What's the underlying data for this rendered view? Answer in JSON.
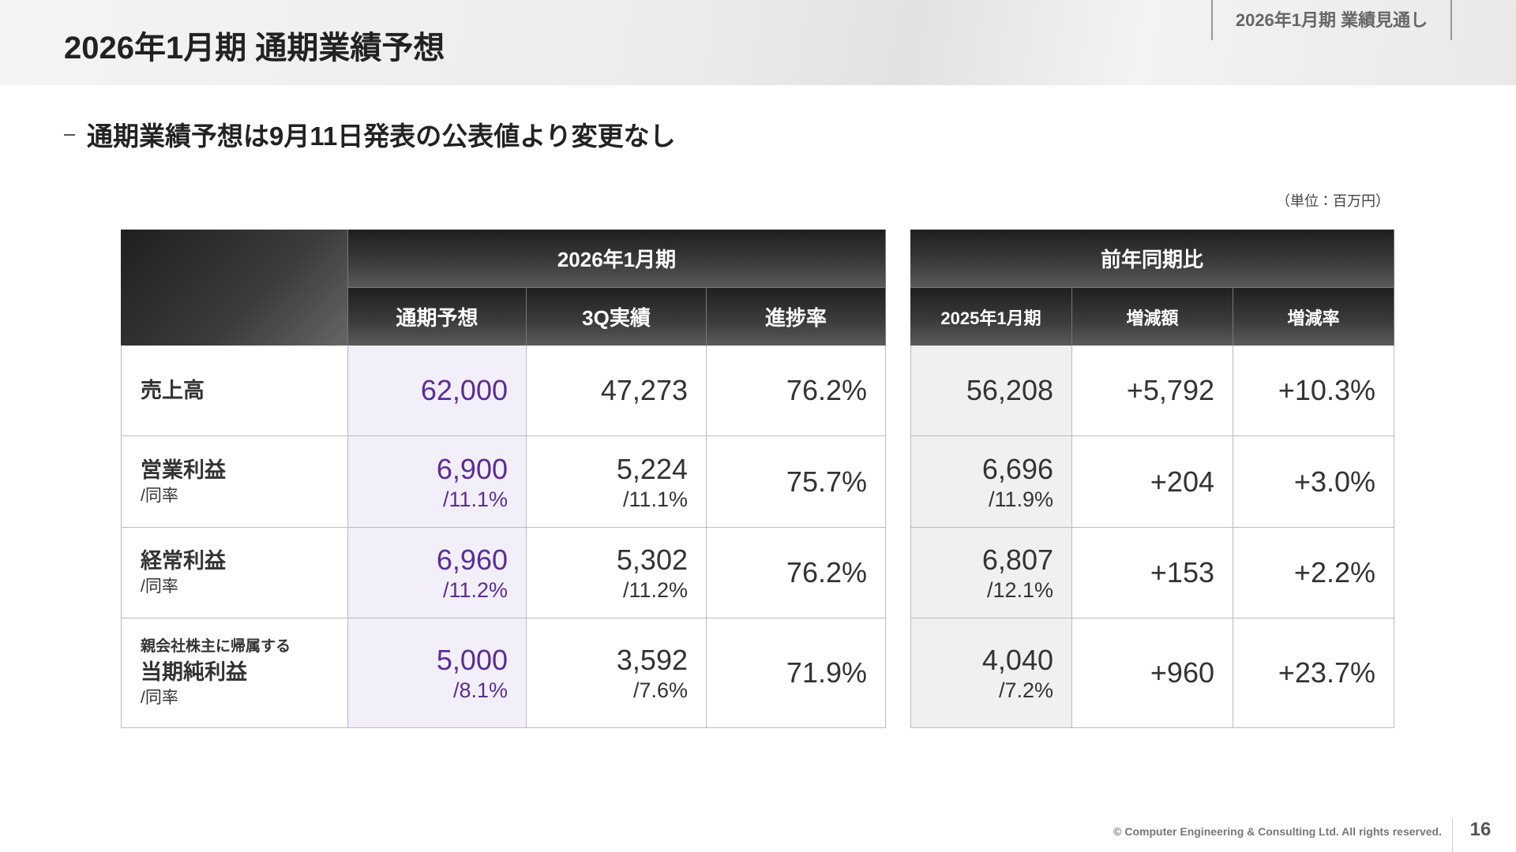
{
  "header": {
    "title": "2026年1月期 通期業績予想",
    "tag": "2026年1月期 業績見通し"
  },
  "subtitle": "通期業績予想は9月11日発表の公表値より変更なし",
  "unit": "（単位：百万円）",
  "table": {
    "group_header": "2026年1月期",
    "column_headers": [
      "通期予想",
      "3Q実績",
      "進捗率"
    ],
    "rows": [
      {
        "label": "売上高",
        "cells": [
          {
            "main": "62,000"
          },
          {
            "main": "47,273"
          },
          {
            "main": "76.2%"
          }
        ]
      },
      {
        "label": "営業利益",
        "sublabel": "/同率",
        "cells": [
          {
            "main": "6,900",
            "sub": "/11.1%"
          },
          {
            "main": "5,224",
            "sub": "/11.1%"
          },
          {
            "main": "75.7%"
          }
        ]
      },
      {
        "label": "経常利益",
        "sublabel": "/同率",
        "cells": [
          {
            "main": "6,960",
            "sub": "/11.2%"
          },
          {
            "main": "5,302",
            "sub": "/11.2%"
          },
          {
            "main": "76.2%"
          }
        ]
      },
      {
        "prelabel": "親会社株主に帰属する",
        "label": "当期純利益",
        "sublabel": "/同率",
        "cells": [
          {
            "main": "5,000",
            "sub": "/8.1%"
          },
          {
            "main": "3,592",
            "sub": "/7.6%"
          },
          {
            "main": "71.9%"
          }
        ]
      }
    ]
  },
  "comparison": {
    "group_header": "前年同期比",
    "column_headers": [
      "2025年1月期",
      "増減額",
      "増減率"
    ],
    "rows": [
      {
        "cells": [
          {
            "main": "56,208"
          },
          {
            "main": "+5,792"
          },
          {
            "main": "+10.3%"
          }
        ]
      },
      {
        "cells": [
          {
            "main": "6,696",
            "sub": "/11.9%"
          },
          {
            "main": "+204"
          },
          {
            "main": "+3.0%"
          }
        ]
      },
      {
        "cells": [
          {
            "main": "6,807",
            "sub": "/12.1%"
          },
          {
            "main": "+153"
          },
          {
            "main": "+2.2%"
          }
        ]
      },
      {
        "cells": [
          {
            "main": "4,040",
            "sub": "/7.2%"
          },
          {
            "main": "+960"
          },
          {
            "main": "+23.7%"
          }
        ]
      }
    ]
  },
  "footer": {
    "copyright": "© Computer Engineering & Consulting Ltd. All rights reserved.",
    "page": "16"
  }
}
